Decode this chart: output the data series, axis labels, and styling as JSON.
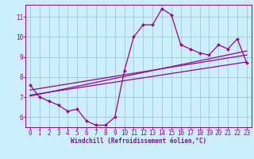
{
  "title": "",
  "xlabel": "Windchill (Refroidissement éolien,°C)",
  "ylabel": "",
  "bg_color": "#cceeff",
  "line_color": "#990099",
  "grid_color": "#99cccc",
  "x_data": [
    0,
    1,
    2,
    3,
    4,
    5,
    6,
    7,
    8,
    9,
    10,
    11,
    12,
    13,
    14,
    15,
    16,
    17,
    18,
    19,
    20,
    21,
    22,
    23
  ],
  "y_data": [
    7.6,
    7.0,
    6.8,
    6.6,
    6.3,
    6.4,
    5.8,
    5.6,
    5.6,
    6.0,
    8.3,
    10.0,
    10.6,
    10.6,
    11.4,
    11.1,
    9.6,
    9.4,
    9.2,
    9.1,
    9.6,
    9.4,
    9.9,
    8.7
  ],
  "trend1_x": [
    0,
    23
  ],
  "trend1_y": [
    7.1,
    8.75
  ],
  "trend2_x": [
    0,
    23
  ],
  "trend2_y": [
    7.35,
    9.1
  ],
  "trend3_x": [
    0,
    23
  ],
  "trend3_y": [
    7.05,
    9.3
  ],
  "ylim": [
    5.5,
    11.6
  ],
  "xlim": [
    -0.5,
    23.5
  ],
  "yticks": [
    6,
    7,
    8,
    9,
    10,
    11
  ],
  "xticks": [
    0,
    1,
    2,
    3,
    4,
    5,
    6,
    7,
    8,
    9,
    10,
    11,
    12,
    13,
    14,
    15,
    16,
    17,
    18,
    19,
    20,
    21,
    22,
    23
  ]
}
